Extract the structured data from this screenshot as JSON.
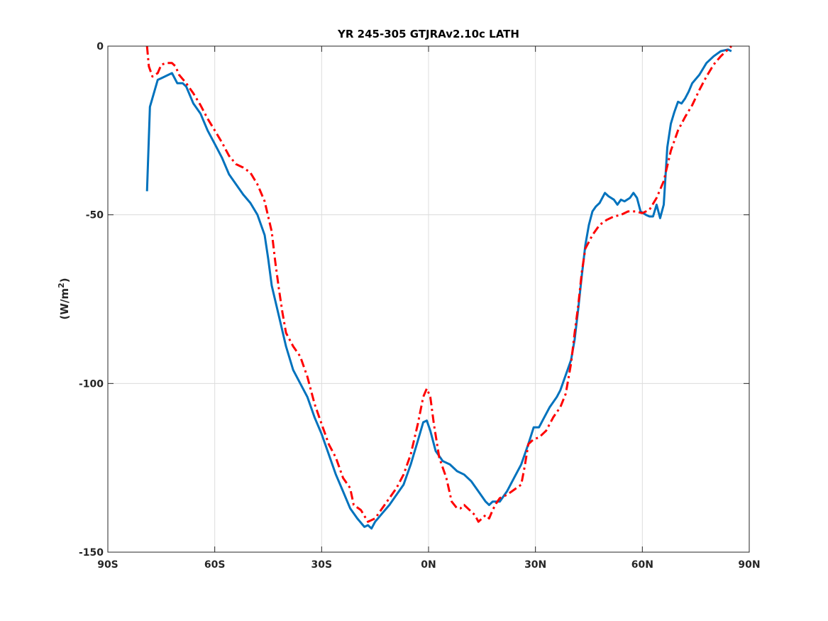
{
  "chart_data": {
    "type": "line",
    "title": "YR 245-305 GTJRAv2.10c LATH",
    "xlabel": "",
    "ylabel": "(W/m",
    "ylabel_sup": "2",
    "ylabel_close": ")",
    "xlim": [
      -90,
      90
    ],
    "ylim": [
      -150,
      0
    ],
    "x_ticks": [
      -90,
      -60,
      -30,
      0,
      30,
      60,
      90
    ],
    "x_tick_labels": [
      "90S",
      "60S",
      "30S",
      "0N",
      "30N",
      "60N",
      "90N"
    ],
    "y_ticks": [
      0,
      -50,
      -100,
      -150
    ],
    "y_tick_labels": [
      "0",
      "-50",
      "-100",
      "-150"
    ],
    "grid": true,
    "legend": "none",
    "series": [
      {
        "color": "#0072BD",
        "line_style": "solid",
        "points": [
          [
            -79,
            -43
          ],
          [
            -78.2,
            -18
          ],
          [
            -76,
            -10
          ],
          [
            -75,
            -9.5
          ],
          [
            -73,
            -8.5
          ],
          [
            -72,
            -8
          ],
          [
            -70.5,
            -11
          ],
          [
            -69,
            -11
          ],
          [
            -68,
            -12
          ],
          [
            -66,
            -17
          ],
          [
            -64,
            -20
          ],
          [
            -62,
            -25
          ],
          [
            -60,
            -29
          ],
          [
            -58,
            -33
          ],
          [
            -56,
            -38
          ],
          [
            -54,
            -41
          ],
          [
            -52,
            -44
          ],
          [
            -50,
            -46.5
          ],
          [
            -48,
            -50
          ],
          [
            -46,
            -56
          ],
          [
            -45,
            -63
          ],
          [
            -44,
            -71
          ],
          [
            -42,
            -80
          ],
          [
            -40,
            -89
          ],
          [
            -38,
            -96
          ],
          [
            -36,
            -100
          ],
          [
            -34,
            -104
          ],
          [
            -32,
            -110
          ],
          [
            -30,
            -115
          ],
          [
            -28,
            -121
          ],
          [
            -26,
            -127
          ],
          [
            -24,
            -132
          ],
          [
            -22,
            -137
          ],
          [
            -20,
            -140
          ],
          [
            -18,
            -142.5
          ],
          [
            -17,
            -142
          ],
          [
            -16,
            -143
          ],
          [
            -15,
            -141
          ],
          [
            -13,
            -138.5
          ],
          [
            -11,
            -136
          ],
          [
            -9,
            -133
          ],
          [
            -7,
            -130
          ],
          [
            -5,
            -124
          ],
          [
            -3,
            -117
          ],
          [
            -1.5,
            -111.5
          ],
          [
            -0.5,
            -111
          ],
          [
            0.5,
            -114
          ],
          [
            2,
            -120
          ],
          [
            4,
            -123
          ],
          [
            6,
            -124
          ],
          [
            8,
            -126
          ],
          [
            10,
            -127
          ],
          [
            12,
            -129
          ],
          [
            14,
            -132
          ],
          [
            16,
            -135
          ],
          [
            17,
            -136
          ],
          [
            18,
            -135
          ],
          [
            20,
            -135
          ],
          [
            22,
            -132
          ],
          [
            24,
            -128
          ],
          [
            26,
            -124
          ],
          [
            28,
            -118
          ],
          [
            29.5,
            -113
          ],
          [
            31,
            -113
          ],
          [
            32,
            -111
          ],
          [
            34,
            -107
          ],
          [
            36,
            -104
          ],
          [
            37,
            -102
          ],
          [
            38,
            -99
          ],
          [
            39,
            -96
          ],
          [
            40,
            -93
          ],
          [
            41,
            -87
          ],
          [
            42,
            -78
          ],
          [
            43,
            -68
          ],
          [
            44,
            -59
          ],
          [
            45,
            -53
          ],
          [
            46,
            -49
          ],
          [
            47,
            -47.5
          ],
          [
            48,
            -46.5
          ],
          [
            49.5,
            -43.5
          ],
          [
            50.5,
            -44.5
          ],
          [
            52,
            -45.5
          ],
          [
            53,
            -47
          ],
          [
            54,
            -45.5
          ],
          [
            55,
            -46
          ],
          [
            56.5,
            -45
          ],
          [
            57.5,
            -43.5
          ],
          [
            58.5,
            -45
          ],
          [
            59.5,
            -49
          ],
          [
            61,
            -50
          ],
          [
            62,
            -50.5
          ],
          [
            63,
            -50.5
          ],
          [
            64,
            -47
          ],
          [
            65,
            -51
          ],
          [
            66,
            -47
          ],
          [
            67,
            -30
          ],
          [
            68,
            -23
          ],
          [
            69,
            -19.5
          ],
          [
            70,
            -16.5
          ],
          [
            71,
            -17
          ],
          [
            72,
            -15.5
          ],
          [
            73,
            -13.5
          ],
          [
            74,
            -11
          ],
          [
            76,
            -8.5
          ],
          [
            78,
            -5
          ],
          [
            80,
            -3
          ],
          [
            82,
            -1.5
          ],
          [
            84,
            -1
          ],
          [
            85,
            -1.5
          ]
        ]
      },
      {
        "color": "#FF0000",
        "line_style": "dashdot",
        "points": [
          [
            -79,
            0
          ],
          [
            -78.5,
            -6
          ],
          [
            -77.5,
            -9
          ],
          [
            -76,
            -8
          ],
          [
            -75,
            -5.5
          ],
          [
            -73.5,
            -5
          ],
          [
            -72,
            -5
          ],
          [
            -71,
            -6
          ],
          [
            -70,
            -8.5
          ],
          [
            -68,
            -11
          ],
          [
            -66,
            -14
          ],
          [
            -64,
            -17.5
          ],
          [
            -62,
            -21.5
          ],
          [
            -60,
            -25
          ],
          [
            -58,
            -28.5
          ],
          [
            -56,
            -32.5
          ],
          [
            -54,
            -35
          ],
          [
            -52,
            -36
          ],
          [
            -50,
            -37.5
          ],
          [
            -48,
            -41
          ],
          [
            -46,
            -46
          ],
          [
            -44,
            -55
          ],
          [
            -43,
            -64
          ],
          [
            -42,
            -72
          ],
          [
            -41,
            -79
          ],
          [
            -40,
            -85
          ],
          [
            -38,
            -89
          ],
          [
            -36,
            -92
          ],
          [
            -35,
            -95
          ],
          [
            -34,
            -98
          ],
          [
            -32,
            -106
          ],
          [
            -30,
            -112
          ],
          [
            -28,
            -118
          ],
          [
            -26,
            -122
          ],
          [
            -24,
            -128
          ],
          [
            -22,
            -131
          ],
          [
            -21,
            -136
          ],
          [
            -19,
            -137.5
          ],
          [
            -17,
            -141
          ],
          [
            -15,
            -140
          ],
          [
            -13,
            -137
          ],
          [
            -11,
            -134
          ],
          [
            -9,
            -131
          ],
          [
            -7,
            -127
          ],
          [
            -5,
            -121
          ],
          [
            -3,
            -112
          ],
          [
            -1.5,
            -104
          ],
          [
            -0.5,
            -101.5
          ],
          [
            0.5,
            -104
          ],
          [
            1.5,
            -112
          ],
          [
            3,
            -122
          ],
          [
            5,
            -128
          ],
          [
            6.5,
            -135
          ],
          [
            8,
            -137
          ],
          [
            9,
            -137
          ],
          [
            10,
            -136
          ],
          [
            11,
            -137
          ],
          [
            12,
            -138
          ],
          [
            13,
            -139
          ],
          [
            14,
            -141
          ],
          [
            15,
            -140
          ],
          [
            16,
            -139
          ],
          [
            17,
            -140
          ],
          [
            18,
            -137.5
          ],
          [
            19,
            -135.5
          ],
          [
            20,
            -134
          ],
          [
            22,
            -133
          ],
          [
            24,
            -131.5
          ],
          [
            26,
            -130
          ],
          [
            27,
            -124.5
          ],
          [
            28,
            -118
          ],
          [
            29.5,
            -116.5
          ],
          [
            31,
            -116
          ],
          [
            33,
            -114
          ],
          [
            35,
            -110
          ],
          [
            37,
            -107
          ],
          [
            38.5,
            -103
          ],
          [
            40,
            -94
          ],
          [
            41,
            -85
          ],
          [
            42,
            -77
          ],
          [
            43,
            -67
          ],
          [
            44,
            -60
          ],
          [
            46,
            -56
          ],
          [
            48,
            -53
          ],
          [
            50,
            -51.5
          ],
          [
            52,
            -50.5
          ],
          [
            54,
            -50
          ],
          [
            56,
            -49
          ],
          [
            58,
            -49
          ],
          [
            60,
            -49.5
          ],
          [
            62,
            -48.5
          ],
          [
            64,
            -45
          ],
          [
            66,
            -40
          ],
          [
            68,
            -31
          ],
          [
            70,
            -25
          ],
          [
            72,
            -21
          ],
          [
            74,
            -17.5
          ],
          [
            76,
            -13
          ],
          [
            78,
            -9
          ],
          [
            80,
            -5.5
          ],
          [
            82,
            -3
          ],
          [
            84,
            -1
          ],
          [
            85,
            0
          ]
        ]
      }
    ]
  }
}
